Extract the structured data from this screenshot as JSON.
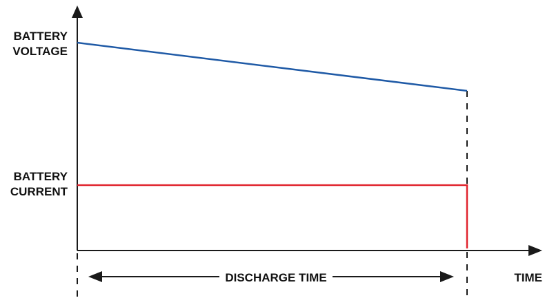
{
  "labels": {
    "voltage_line1": "BATTERY",
    "voltage_line2": "VOLTAGE",
    "current_line1": "BATTERY",
    "current_line2": "CURRENT",
    "time": "TIME",
    "discharge_time": "DISCHARGE TIME"
  },
  "colors": {
    "axis": "#1a1a1a",
    "voltage": "#1f5aa6",
    "current": "#e0242e"
  },
  "chart_data": {
    "type": "line",
    "series": [
      {
        "name": "BATTERY VOLTAGE",
        "description_points": [
          [
            0,
            1.0
          ],
          [
            1,
            0.78
          ]
        ]
      },
      {
        "name": "BATTERY CURRENT",
        "description_points": [
          [
            0,
            1.0
          ],
          [
            1,
            1.0
          ],
          [
            1,
            0
          ]
        ]
      }
    ]
  }
}
